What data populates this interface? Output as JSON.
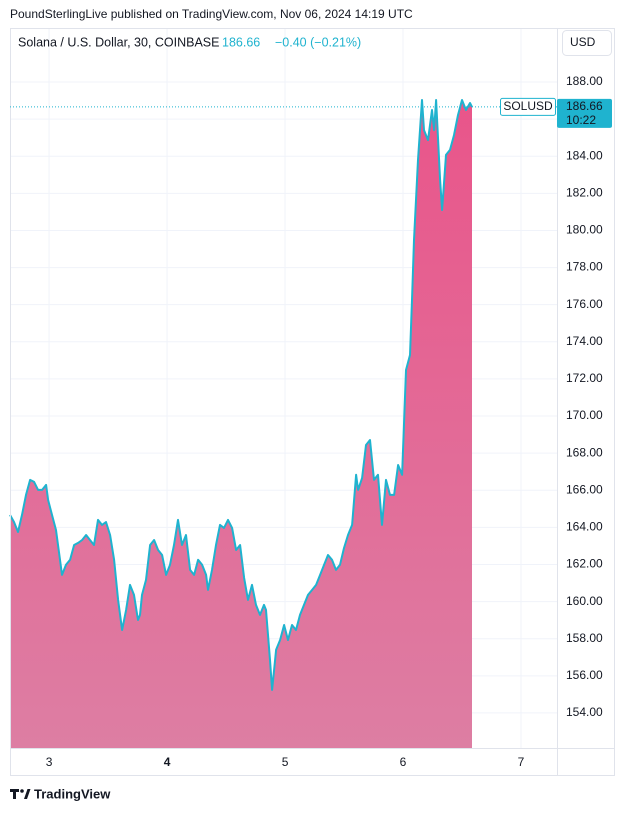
{
  "header": {
    "text": "PoundSterlingLive published on TradingView.com, Nov 06, 2024 14:19 UTC"
  },
  "chart_data": {
    "type": "area",
    "title": "Solana / U.S. Dollar, 30, COINBASE",
    "last_price": 186.66,
    "change": "−0.40 (−0.21%)",
    "currency": "USD",
    "symbol": "SOLUSD",
    "countdown": "10:22",
    "area_color_top": "#e9558a",
    "area_color_bottom": "#dd7ea3",
    "x": [
      2.669,
      2.703,
      2.737,
      2.771,
      2.805,
      2.839,
      2.873,
      2.907,
      2.941,
      2.975,
      2.992,
      3.025,
      3.059,
      3.093,
      3.11,
      3.144,
      3.178,
      3.212,
      3.246,
      3.28,
      3.314,
      3.347,
      3.381,
      3.415,
      3.449,
      3.483,
      3.517,
      3.551,
      3.585,
      3.619,
      3.653,
      3.686,
      3.72,
      3.754,
      3.771,
      3.788,
      3.822,
      3.856,
      3.89,
      3.924,
      3.958,
      3.992,
      4.025,
      4.059,
      4.093,
      4.127,
      4.161,
      4.195,
      4.229,
      4.263,
      4.297,
      4.331,
      4.347,
      4.381,
      4.415,
      4.449,
      4.483,
      4.517,
      4.551,
      4.585,
      4.619,
      4.653,
      4.686,
      4.72,
      4.754,
      4.788,
      4.822,
      4.839,
      4.873,
      4.89,
      4.924,
      4.958,
      4.992,
      5.025,
      5.059,
      5.093,
      5.127,
      5.161,
      5.195,
      5.229,
      5.263,
      5.297,
      5.331,
      5.364,
      5.398,
      5.432,
      5.466,
      5.5,
      5.534,
      5.568,
      5.602,
      5.619,
      5.653,
      5.686,
      5.72,
      5.754,
      5.788,
      5.822,
      5.856,
      5.89,
      5.924,
      5.958,
      5.992,
      6.025,
      6.059,
      6.076,
      6.093,
      6.127,
      6.144,
      6.161,
      6.178,
      6.212,
      6.246,
      6.263,
      6.28,
      6.314,
      6.331,
      6.364,
      6.398,
      6.432,
      6.466,
      6.5,
      6.534,
      6.568,
      6.585
    ],
    "series": [
      {
        "name": "SOLUSD",
        "color": "#1fb3cf",
        "values": [
          164.67,
          164.29,
          163.75,
          164.67,
          165.75,
          166.56,
          166.45,
          166.02,
          166.02,
          166.29,
          165.48,
          164.67,
          163.86,
          162.25,
          161.44,
          161.98,
          162.25,
          163.05,
          163.16,
          163.32,
          163.59,
          163.32,
          163.05,
          164.4,
          164.13,
          164.29,
          163.59,
          162.25,
          160.09,
          158.47,
          159.55,
          160.9,
          160.36,
          159.01,
          159.28,
          160.36,
          161.17,
          163.05,
          163.32,
          162.78,
          162.51,
          161.44,
          161.98,
          163.05,
          164.4,
          163.05,
          163.59,
          161.71,
          161.44,
          162.25,
          161.98,
          161.44,
          160.63,
          161.71,
          163.05,
          164.13,
          163.97,
          164.4,
          163.97,
          162.78,
          163.05,
          161.28,
          160.09,
          160.9,
          159.82,
          159.28,
          159.82,
          159.55,
          156.86,
          155.24,
          157.4,
          157.93,
          158.74,
          157.93,
          158.74,
          158.47,
          159.28,
          159.82,
          160.36,
          160.63,
          160.9,
          161.44,
          161.98,
          162.51,
          162.25,
          161.71,
          161.98,
          162.89,
          163.59,
          164.13,
          166.83,
          166.02,
          166.66,
          168.44,
          168.71,
          166.56,
          166.83,
          164.13,
          166.56,
          165.75,
          165.75,
          167.36,
          166.83,
          172.48,
          173.29,
          176.25,
          179.49,
          183.8,
          185.41,
          187.03,
          185.41,
          184.87,
          186.49,
          185.41,
          187.03,
          182.72,
          181.1,
          184.07,
          184.34,
          185.14,
          186.22,
          187.03,
          186.49,
          186.87,
          186.66
        ]
      }
    ],
    "xlim": [
      2.669,
      7.305
    ],
    "xticks": [
      3,
      4,
      5,
      6,
      7
    ],
    "ylim": [
      152.11,
      190.91
    ],
    "yticks": [
      {
        "value": 154,
        "label": "154.00"
      },
      {
        "value": 156,
        "label": "156.00"
      },
      {
        "value": 158,
        "label": "158.00"
      },
      {
        "value": 160,
        "label": "160.00"
      },
      {
        "value": 162,
        "label": "162.00"
      },
      {
        "value": 164,
        "label": "164.00"
      },
      {
        "value": 166,
        "label": "166.00"
      },
      {
        "value": 168,
        "label": "168.00"
      },
      {
        "value": 170,
        "label": "170.00"
      },
      {
        "value": 172,
        "label": "172.00"
      },
      {
        "value": 174,
        "label": "174.00"
      },
      {
        "value": 176,
        "label": "176.00"
      },
      {
        "value": 178,
        "label": "178.00"
      },
      {
        "value": 180,
        "label": "180.00"
      },
      {
        "value": 182,
        "label": "182.00"
      },
      {
        "value": 184,
        "label": "184.00"
      },
      {
        "value": 186,
        "label": "186.00"
      },
      {
        "value": 188,
        "label": "188.00"
      }
    ],
    "grid": true
  },
  "footer": {
    "brand": "TradingView"
  }
}
